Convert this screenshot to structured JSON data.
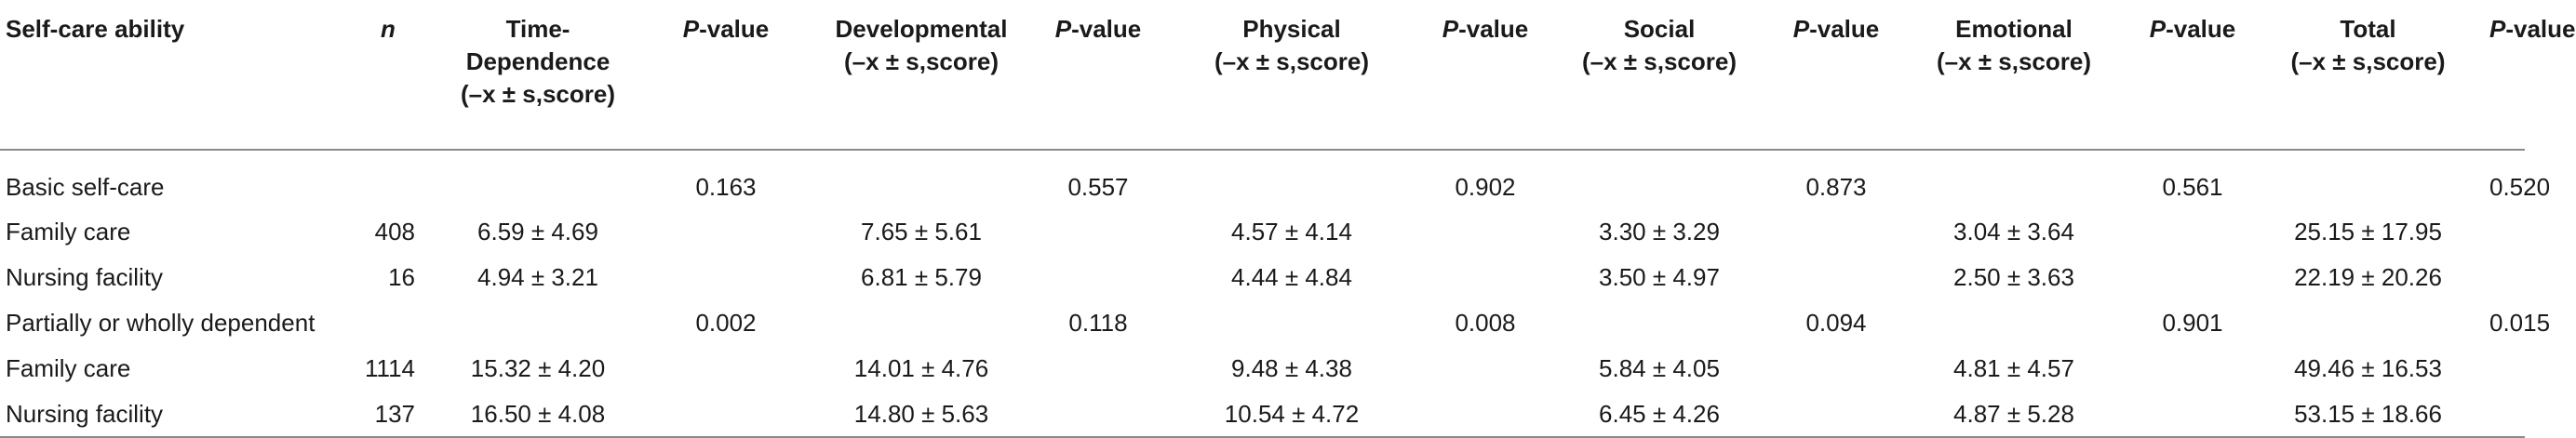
{
  "table": {
    "headers": {
      "ability": "Self-care ability",
      "n": "n",
      "time": [
        "Time-",
        "Dependence",
        "(–x ± s,score)"
      ],
      "developmental": [
        "Developmental",
        "(–x ± s,score)"
      ],
      "physical": [
        "Physical",
        "(–x ± s,score)"
      ],
      "social": [
        "Social",
        "(–x ± s,score)"
      ],
      "emotional": [
        "Emotional",
        "(–x ± s,score)"
      ],
      "total": [
        "Total",
        "(–x ± s,score)"
      ],
      "p_italic": "P",
      "p_suffix": "-value"
    },
    "rows": [
      {
        "label": "Basic self-care",
        "n": "",
        "time": "",
        "p1": "0.163",
        "developmental": "",
        "p2": "0.557",
        "physical": "",
        "p3": "0.902",
        "social": "",
        "p4": "0.873",
        "emotional": "",
        "p5": "0.561",
        "total": "",
        "p6": "0.520"
      },
      {
        "label": "Family care",
        "n": "408",
        "time": "6.59 ± 4.69",
        "p1": "",
        "developmental": "7.65 ± 5.61",
        "p2": "",
        "physical": "4.57 ± 4.14",
        "p3": "",
        "social": "3.30 ± 3.29",
        "p4": "",
        "emotional": "3.04 ± 3.64",
        "p5": "",
        "total": "25.15 ± 17.95",
        "p6": ""
      },
      {
        "label": "Nursing facility",
        "n": "16",
        "time": "4.94 ± 3.21",
        "p1": "",
        "developmental": "6.81 ± 5.79",
        "p2": "",
        "physical": "4.44 ± 4.84",
        "p3": "",
        "social": "3.50 ± 4.97",
        "p4": "",
        "emotional": "2.50 ± 3.63",
        "p5": "",
        "total": "22.19 ± 20.26",
        "p6": ""
      },
      {
        "label": "Partially or wholly dependent",
        "n": "",
        "time": "",
        "p1": "0.002",
        "developmental": "",
        "p2": "0.118",
        "physical": "",
        "p3": "0.008",
        "social": "",
        "p4": "0.094",
        "emotional": "",
        "p5": "0.901",
        "total": "",
        "p6": "0.015"
      },
      {
        "label": "Family care",
        "n": "1114",
        "time": "15.32 ± 4.20",
        "p1": "",
        "developmental": "14.01 ± 4.76",
        "p2": "",
        "physical": "9.48 ± 4.38",
        "p3": "",
        "social": "5.84 ± 4.05",
        "p4": "",
        "emotional": "4.81 ± 4.57",
        "p5": "",
        "total": "49.46 ± 16.53",
        "p6": ""
      },
      {
        "label": "Nursing facility",
        "n": "137",
        "time": "16.50 ± 4.08",
        "p1": "",
        "developmental": "14.80 ± 5.63",
        "p2": "",
        "physical": "10.54 ± 4.72",
        "p3": "",
        "social": "6.45 ± 4.26",
        "p4": "",
        "emotional": "4.87 ± 5.28",
        "p5": "",
        "total": "53.15 ± 18.66",
        "p6": ""
      }
    ]
  }
}
